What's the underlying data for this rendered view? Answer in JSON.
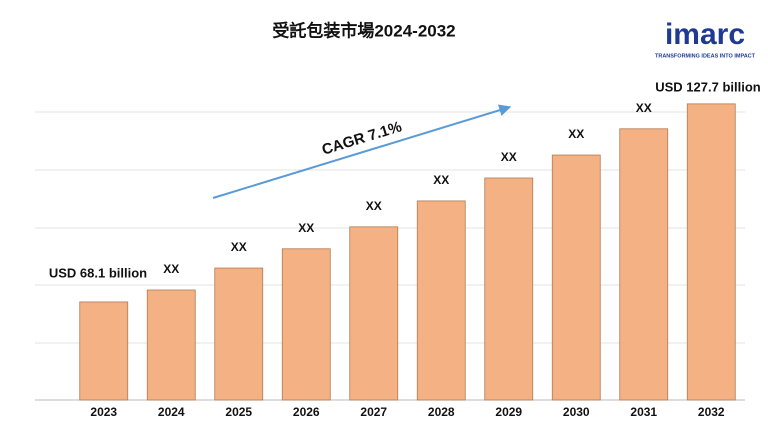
{
  "chart_data": {
    "type": "bar",
    "title": "受託包装市場2024-2032",
    "categories": [
      "2023",
      "2024",
      "2025",
      "2026",
      "2027",
      "2028",
      "2029",
      "2030",
      "2031",
      "2032"
    ],
    "values": [
      68.1,
      71.7,
      78.3,
      84.1,
      90.7,
      98.5,
      105.4,
      112.3,
      120.2,
      127.7
    ],
    "value_labels": [
      "USD 68.1 billion",
      "XX",
      "XX",
      "XX",
      "XX",
      "XX",
      "XX",
      "XX",
      "XX",
      "USD 127.7 billion"
    ],
    "color": "#f4b183",
    "ylim": [
      38.6,
      140.9
    ],
    "annotation": "CAGR 7.1%",
    "logo": {
      "name": "imarc",
      "tagline": "TRANSFORMING IDEAS INTO IMPACT"
    }
  }
}
